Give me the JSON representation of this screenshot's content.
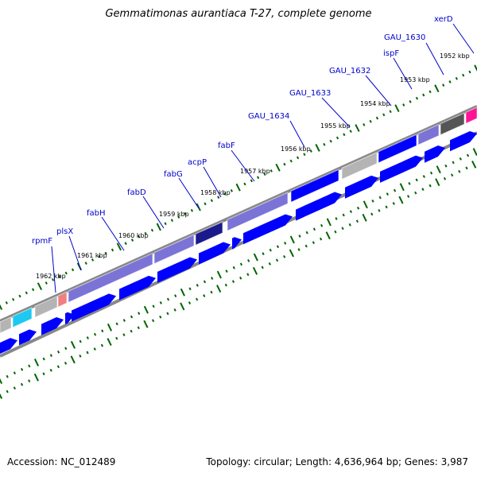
{
  "title": "Gemmatimonas aurantiaca T-27, complete genome",
  "footer": {
    "accession": "Accession: NC_012489",
    "summary": "Topology: circular; Length: 4,636,964 bp; Genes: 3,987"
  },
  "colors": {
    "cds_arrow": "#0000ff",
    "fab_cluster": "#7b73d6",
    "acp_dark": "#1a1a8c",
    "grey_feature": "#b4b4b4",
    "dark_grey_feature": "#555555",
    "cyan_feature": "#1ec8f0",
    "rna_feature": "#f08080",
    "magenta_feature": "#ff1493",
    "tick_color": "#006400",
    "backbone": "#888888"
  },
  "kbp_ticks": [
    {
      "label": "1952 kbp"
    },
    {
      "label": "1953 kbp"
    },
    {
      "label": "1954 kbp"
    },
    {
      "label": "1955 kbp"
    },
    {
      "label": "1956 kbp"
    },
    {
      "label": "1957 kbp"
    },
    {
      "label": "1958 kbp"
    },
    {
      "label": "1959 kbp"
    },
    {
      "label": "1960 kbp"
    },
    {
      "label": "1961 kbp"
    },
    {
      "label": "1962 kbp"
    }
  ],
  "genes": [
    {
      "label": "xerD"
    },
    {
      "label": "GAU_1630"
    },
    {
      "label": "ispF"
    },
    {
      "label": "GAU_1632"
    },
    {
      "label": "GAU_1633"
    },
    {
      "label": "GAU_1634"
    },
    {
      "label": "fabF"
    },
    {
      "label": "acpP"
    },
    {
      "label": "fabG"
    },
    {
      "label": "fabD"
    },
    {
      "label": "fabH"
    },
    {
      "label": "plsX"
    },
    {
      "label": "rpmF"
    }
  ]
}
